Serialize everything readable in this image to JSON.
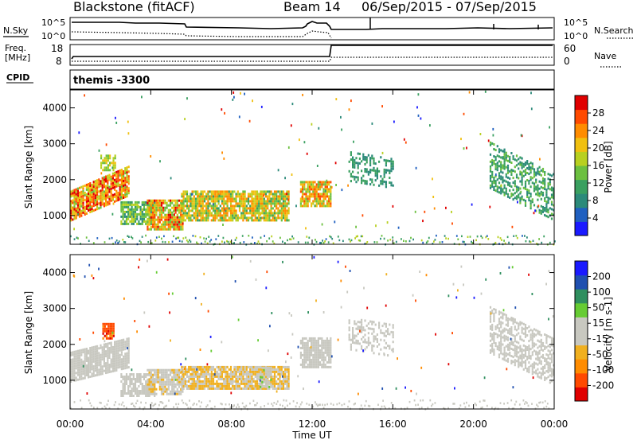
{
  "header": {
    "title": "Blackstone (fitACF)",
    "beam": "Beam 14",
    "date_range": "06/Sep/2015 - 07/Sep/2015"
  },
  "noise_panel": {
    "left_label": "N.Sky",
    "right_label": "N.Search",
    "tick_top": "10^5",
    "tick_bottom": "10^0"
  },
  "freq_panel": {
    "left_label_line1": "Freq.",
    "left_label_line2": "[MHz]",
    "left_ticks": [
      "18",
      "8"
    ],
    "right_label": "Nave",
    "right_ticks": [
      "60",
      "0"
    ]
  },
  "cpid": {
    "label": "CPID",
    "value": "themis -3300"
  },
  "chart_data": [
    {
      "type": "heatmap",
      "title": "",
      "xlabel": "Time UT",
      "ylabel": "Slant Range [km]",
      "x_ticks": [
        "00:00",
        "04:00",
        "08:00",
        "12:00",
        "16:00",
        "20:00",
        "00:00"
      ],
      "xlim_hours": [
        0,
        24
      ],
      "y_ticks": [
        1000,
        2000,
        3000,
        4000
      ],
      "ylim": [
        200,
        4500
      ],
      "colorbar": {
        "label": "Power [dB]",
        "ticks": [
          "28",
          "24",
          "20",
          "16",
          "12",
          "8",
          "4"
        ],
        "range": [
          0,
          30
        ],
        "colors": [
          "#1a1aff",
          "#2060c0",
          "#2c8a7a",
          "#3aa060",
          "#6cc040",
          "#b8d020",
          "#f0c010",
          "#ff8c00",
          "#ff4a00",
          "#e00000"
        ]
      }
    },
    {
      "type": "heatmap",
      "title": "",
      "xlabel": "Time UT",
      "ylabel": "Slant Range [km]",
      "x_ticks": [
        "00:00",
        "04:00",
        "08:00",
        "12:00",
        "16:00",
        "20:00",
        "00:00"
      ],
      "xlim_hours": [
        0,
        24
      ],
      "y_ticks": [
        1000,
        2000,
        3000,
        4000
      ],
      "ylim": [
        200,
        4500
      ],
      "colorbar": {
        "label": "Velocity [m s-1]",
        "ticks": [
          "200",
          "100",
          "50",
          "15",
          "-15",
          "-50",
          "-100",
          "-200"
        ],
        "range": [
          -250,
          250
        ],
        "colors": [
          "#e00000",
          "#ff4a00",
          "#ff8c00",
          "#f0b020",
          "#c8c8c0",
          "#c8c8c0",
          "#66cc33",
          "#2f8f5f",
          "#2050b0",
          "#1a1aff"
        ]
      }
    }
  ],
  "scatter_regions": {
    "power": [
      {
        "t0": 0.0,
        "t1": 2.9,
        "r0": 900,
        "r1": 1700,
        "tilt": 700,
        "vmin": 14,
        "vmax": 30,
        "density": 0.85
      },
      {
        "t0": 1.5,
        "t1": 2.2,
        "r0": 2300,
        "r1": 2700,
        "tilt": 0,
        "vmin": 12,
        "vmax": 20,
        "density": 0.7
      },
      {
        "t0": 2.5,
        "t1": 4.2,
        "r0": 800,
        "r1": 1400,
        "tilt": 0,
        "vmin": 8,
        "vmax": 18,
        "density": 0.8
      },
      {
        "t0": 3.8,
        "t1": 5.6,
        "r0": 650,
        "r1": 1500,
        "tilt": 0,
        "vmin": 12,
        "vmax": 28,
        "density": 0.85
      },
      {
        "t0": 5.5,
        "t1": 10.8,
        "r0": 900,
        "r1": 1750,
        "tilt": 0,
        "vmin": 10,
        "vmax": 24,
        "density": 0.85
      },
      {
        "t0": 11.4,
        "t1": 12.9,
        "r0": 1300,
        "r1": 2000,
        "tilt": 0,
        "vmin": 12,
        "vmax": 26,
        "density": 0.85
      },
      {
        "t0": 13.8,
        "t1": 16.0,
        "r0": 2000,
        "r1": 2800,
        "tilt": -200,
        "vmin": 6,
        "vmax": 12,
        "density": 0.35
      },
      {
        "t0": 20.8,
        "t1": 24.0,
        "r0": 1800,
        "r1": 3100,
        "tilt": -900,
        "vmin": 6,
        "vmax": 14,
        "density": 0.5
      }
    ],
    "velocity": [
      {
        "t0": 0.0,
        "t1": 2.9,
        "r0": 1000,
        "r1": 1800,
        "tilt": 400,
        "vmin": -14,
        "vmax": 14,
        "density": 0.85
      },
      {
        "t0": 1.6,
        "t1": 2.2,
        "r0": 2200,
        "r1": 2600,
        "tilt": 0,
        "vmin": -220,
        "vmax": -120,
        "density": 0.85
      },
      {
        "t0": 2.5,
        "t1": 4.2,
        "r0": 600,
        "r1": 1200,
        "tilt": 0,
        "vmin": -14,
        "vmax": 14,
        "density": 0.75
      },
      {
        "t0": 3.8,
        "t1": 5.6,
        "r0": 650,
        "r1": 1350,
        "tilt": 0,
        "vmin": -60,
        "vmax": -15,
        "density": 0.85
      },
      {
        "t0": 5.5,
        "t1": 10.8,
        "r0": 800,
        "r1": 1450,
        "tilt": 0,
        "vmin": -90,
        "vmax": -15,
        "density": 0.9
      },
      {
        "t0": 9.4,
        "t1": 10.0,
        "r0": 850,
        "r1": 1400,
        "tilt": 0,
        "vmin": 16,
        "vmax": 60,
        "density": 0.8
      },
      {
        "t0": 11.4,
        "t1": 12.9,
        "r0": 1400,
        "r1": 2200,
        "tilt": 0,
        "vmin": -14,
        "vmax": 14,
        "density": 0.85
      },
      {
        "t0": 13.8,
        "t1": 16.0,
        "r0": 1900,
        "r1": 2800,
        "tilt": -200,
        "vmin": -14,
        "vmax": 14,
        "density": 0.35
      },
      {
        "t0": 20.8,
        "t1": 24.0,
        "r0": 1800,
        "r1": 3100,
        "tilt": -900,
        "vmin": -14,
        "vmax": 14,
        "density": 0.55
      }
    ]
  }
}
